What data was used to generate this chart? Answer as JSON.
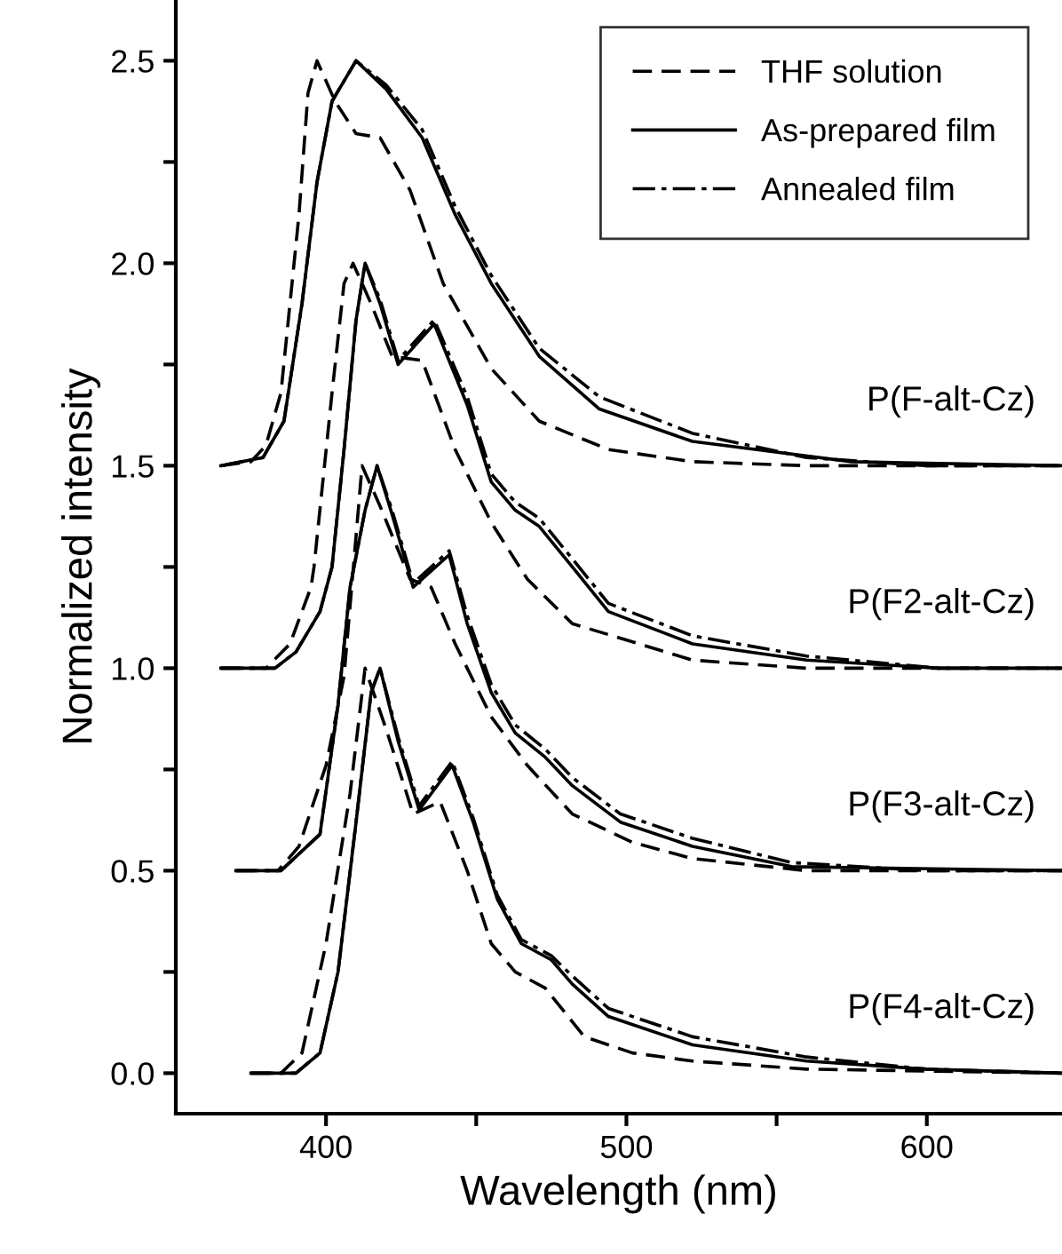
{
  "chart_data": {
    "type": "line",
    "xlabel": "Wavelength (nm)",
    "ylabel": "Normalized intensity",
    "xlim": [
      350,
      645
    ],
    "ylim": [
      -0.1,
      2.65
    ],
    "xticks": [
      400,
      {
        "value": 450,
        "label": null
      },
      500,
      {
        "value": 550,
        "label": null
      },
      600
    ],
    "yticks": [
      {
        "value": 0,
        "label": "0.0"
      },
      {
        "value": 0.25,
        "label": null
      },
      {
        "value": 0.5,
        "label": "0.5"
      },
      {
        "value": 0.75,
        "label": null
      },
      {
        "value": 1,
        "label": "1.0"
      },
      {
        "value": 1.25,
        "label": null
      },
      {
        "value": 1.5,
        "label": "1.5"
      },
      {
        "value": 1.75,
        "label": null
      },
      {
        "value": 2,
        "label": "2.0"
      },
      {
        "value": 2.25,
        "label": null
      },
      {
        "value": 2.5,
        "label": "2.5"
      }
    ],
    "grid": false,
    "legend": "top right",
    "marker": "none",
    "series": [
      {
        "name": "THF solution",
        "color": "#000000",
        "line_style": "dashed",
        "x": [
          365,
          375,
          380,
          385,
          391,
          394,
          397,
          403,
          410,
          418,
          428,
          439,
          455,
          471,
          494,
          522,
          560,
          600,
          645
        ],
        "values": [
          1.5,
          1.51,
          1.55,
          1.68,
          2.12,
          2.42,
          2.5,
          2.4,
          2.32,
          2.31,
          2.18,
          1.95,
          1.74,
          1.61,
          1.54,
          1.51,
          1.5,
          1.5,
          1.5
        ]
      },
      {
        "name": "As-prepared film",
        "color": "#000000",
        "line_style": "solid",
        "x": [
          365,
          379,
          386,
          392,
          397,
          402,
          410,
          420,
          432,
          443,
          455,
          471,
          491,
          522,
          575,
          645
        ],
        "values": [
          1.5,
          1.52,
          1.61,
          1.9,
          2.2,
          2.4,
          2.5,
          2.43,
          2.31,
          2.12,
          1.95,
          1.77,
          1.64,
          1.56,
          1.51,
          1.5
        ]
      },
      {
        "name": "Annealed film",
        "color": "#000000",
        "line_style": "dashdot",
        "x": [
          365,
          379,
          386,
          392,
          397,
          402,
          410,
          420,
          432,
          443,
          455,
          471,
          491,
          522,
          560,
          600,
          645
        ],
        "values": [
          1.5,
          1.52,
          1.61,
          1.9,
          2.2,
          2.4,
          2.5,
          2.44,
          2.33,
          2.14,
          1.97,
          1.79,
          1.67,
          1.58,
          1.52,
          1.5,
          1.5
        ]
      },
      {
        "color": "#000000",
        "line_style": "dashed",
        "x": [
          365,
          380,
          388,
          395,
          396,
          402,
          406,
          409,
          415,
          422,
          432,
          443,
          455,
          467,
          482,
          522,
          560,
          645
        ],
        "values": [
          1.0,
          1.0,
          1.06,
          1.2,
          1.25,
          1.68,
          1.95,
          2.0,
          1.9,
          1.77,
          1.76,
          1.54,
          1.36,
          1.22,
          1.11,
          1.02,
          1.0,
          1.0
        ]
      },
      {
        "color": "#000000",
        "line_style": "solid",
        "x": [
          365,
          383,
          390,
          398,
          402,
          406,
          410,
          413,
          418,
          424,
          436,
          447,
          455,
          463,
          471,
          482,
          494,
          522,
          560,
          604,
          645
        ],
        "values": [
          1.0,
          1.0,
          1.04,
          1.14,
          1.25,
          1.54,
          1.86,
          2.0,
          1.9,
          1.75,
          1.85,
          1.65,
          1.46,
          1.39,
          1.35,
          1.25,
          1.14,
          1.06,
          1.02,
          1.0,
          1.0
        ]
      },
      {
        "color": "#000000",
        "line_style": "dashdot",
        "x": [
          365,
          383,
          390,
          398,
          402,
          406,
          410,
          413,
          418,
          424,
          436,
          447,
          455,
          463,
          471,
          482,
          494,
          522,
          560,
          604,
          645
        ],
        "values": [
          1.0,
          1.0,
          1.04,
          1.14,
          1.25,
          1.54,
          1.86,
          2.0,
          1.91,
          1.76,
          1.86,
          1.67,
          1.48,
          1.41,
          1.37,
          1.27,
          1.16,
          1.08,
          1.03,
          1.0,
          1.0
        ]
      },
      {
        "color": "#000000",
        "line_style": "dashed",
        "x": [
          370,
          384,
          391,
          400,
          406,
          412,
          418,
          428,
          435,
          443,
          455,
          467,
          482,
          502,
          522,
          560,
          645
        ],
        "values": [
          0.5,
          0.5,
          0.56,
          0.76,
          0.98,
          1.5,
          1.4,
          1.22,
          1.2,
          1.06,
          0.88,
          0.76,
          0.64,
          0.57,
          0.53,
          0.5,
          0.5
        ]
      },
      {
        "color": "#000000",
        "line_style": "solid",
        "x": [
          370,
          385,
          398,
          404,
          408,
          413,
          417,
          422,
          429,
          441,
          447,
          455,
          463,
          473,
          482,
          498,
          522,
          555,
          645
        ],
        "values": [
          0.5,
          0.5,
          0.59,
          0.91,
          1.2,
          1.39,
          1.5,
          1.38,
          1.2,
          1.28,
          1.11,
          0.94,
          0.84,
          0.78,
          0.71,
          0.62,
          0.56,
          0.51,
          0.5
        ]
      },
      {
        "color": "#000000",
        "line_style": "dashdot",
        "x": [
          370,
          385,
          398,
          404,
          408,
          413,
          417,
          422,
          429,
          441,
          447,
          455,
          463,
          473,
          482,
          498,
          522,
          555,
          600,
          645
        ],
        "values": [
          0.5,
          0.5,
          0.59,
          0.91,
          1.2,
          1.39,
          1.5,
          1.39,
          1.21,
          1.29,
          1.13,
          0.96,
          0.86,
          0.8,
          0.73,
          0.64,
          0.58,
          0.52,
          0.5,
          0.5
        ]
      },
      {
        "color": "#000000",
        "line_style": "dashed",
        "x": [
          375,
          385,
          392,
          400,
          408,
          413,
          420,
          429,
          438,
          447,
          455,
          463,
          473,
          486,
          502,
          522,
          560,
          645
        ],
        "values": [
          0.0,
          0.0,
          0.05,
          0.32,
          0.69,
          1.0,
          0.85,
          0.64,
          0.67,
          0.5,
          0.32,
          0.25,
          0.21,
          0.09,
          0.05,
          0.03,
          0.01,
          0.0
        ]
      },
      {
        "color": "#000000",
        "line_style": "solid",
        "x": [
          375,
          390,
          398,
          404,
          410,
          415,
          418,
          424,
          431,
          442,
          449,
          457,
          465,
          475,
          482,
          494,
          522,
          560,
          600,
          645
        ],
        "values": [
          0.0,
          0.0,
          0.05,
          0.25,
          0.62,
          0.94,
          1.0,
          0.82,
          0.65,
          0.76,
          0.62,
          0.43,
          0.32,
          0.28,
          0.22,
          0.14,
          0.07,
          0.03,
          0.01,
          0.0
        ]
      },
      {
        "color": "#000000",
        "line_style": "dashdot",
        "x": [
          375,
          390,
          398,
          404,
          410,
          415,
          418,
          424,
          431,
          442,
          449,
          457,
          465,
          475,
          482,
          494,
          522,
          560,
          600,
          645
        ],
        "values": [
          0.0,
          0.0,
          0.05,
          0.25,
          0.62,
          0.94,
          1.0,
          0.83,
          0.66,
          0.77,
          0.63,
          0.44,
          0.33,
          0.29,
          0.24,
          0.16,
          0.09,
          0.04,
          0.01,
          0.0
        ]
      }
    ],
    "annotations": [
      "P(F-alt-Cz)",
      "P(F2-alt-Cz)",
      "P(F3-alt-Cz)",
      "P(F4-alt-Cz)"
    ]
  }
}
